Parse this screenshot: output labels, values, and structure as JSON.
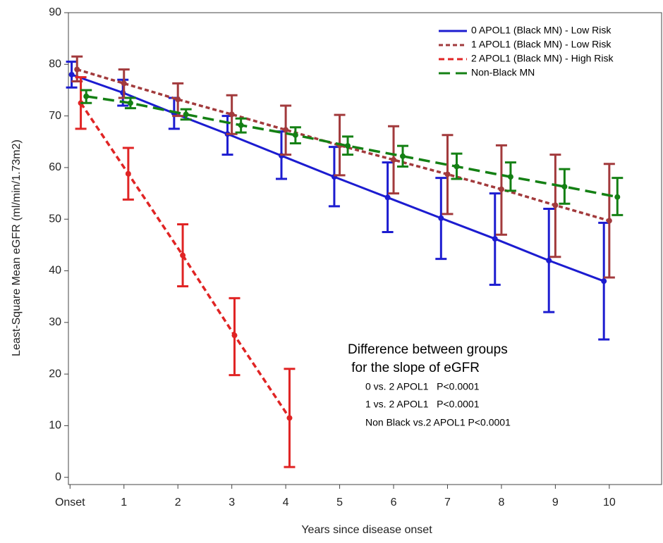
{
  "chart_data": {
    "type": "line",
    "xlabel": "Years since disease onset",
    "ylabel": "Least-Square Mean eGFR (ml/min/1.73m2)",
    "xlim": [
      -0.03,
      10.97
    ],
    "ylim": [
      -1.4,
      90
    ],
    "xticks": [
      {
        "value": 0,
        "label": "Onset"
      },
      1,
      2,
      3,
      4,
      5,
      6,
      7,
      8,
      9,
      10
    ],
    "yticks": [
      0,
      10,
      20,
      30,
      40,
      50,
      60,
      70,
      80,
      90
    ],
    "legend": "upper right",
    "series": [
      {
        "name": "0 APOL1 (Black MN) - Low Risk",
        "color": "#1c1cd0",
        "dash": "solid",
        "x": [
          0.03,
          0.98,
          1.93,
          2.92,
          3.92,
          4.9,
          5.89,
          6.88,
          7.88,
          8.88,
          9.9
        ],
        "values": [
          78,
          74.5,
          70.5,
          66.5,
          62.3,
          58.2,
          54.2,
          50.2,
          46.2,
          42,
          38
        ],
        "lower": [
          75.5,
          72,
          67.5,
          62.5,
          57.8,
          52.5,
          47.5,
          42.3,
          37.3,
          32,
          26.7
        ],
        "upper": [
          80.5,
          77,
          73.5,
          70,
          67,
          64,
          61,
          58,
          55,
          52,
          49.3
        ]
      },
      {
        "name": "1 APOL1 (Black MN) - Low Risk",
        "color": "#a23a3c",
        "dash": "short",
        "x": [
          0.13,
          1.0,
          2.0,
          3.0,
          4.0,
          5.0,
          6.0,
          7.0,
          8.0,
          9.0,
          10.0
        ],
        "values": [
          79,
          76.3,
          73.2,
          70.3,
          67.3,
          64.3,
          61.5,
          58.7,
          55.8,
          52.7,
          49.7
        ],
        "lower": [
          76.7,
          73.5,
          70,
          66.5,
          62.5,
          58.5,
          55,
          51,
          47,
          42.7,
          38.7
        ],
        "upper": [
          81.5,
          79,
          76.3,
          74,
          72,
          70.2,
          68,
          66.3,
          64.3,
          62.5,
          60.7
        ]
      },
      {
        "name": "2 APOL1 (Black MN) - High Risk",
        "color": "#e02424",
        "dash": "medium",
        "x": [
          0.2,
          1.08,
          2.09,
          3.05,
          4.07
        ],
        "values": [
          72.5,
          58.8,
          43,
          27.5,
          11.5
        ],
        "lower": [
          67.5,
          53.8,
          37,
          19.8,
          2
        ],
        "upper": [
          77.5,
          63.8,
          49,
          34.7,
          21
        ]
      },
      {
        "name": "Non-Black MN",
        "color": "#148014",
        "dash": "long",
        "x": [
          0.3,
          1.12,
          2.15,
          3.17,
          4.18,
          5.15,
          6.17,
          7.17,
          8.17,
          9.17,
          10.15
        ],
        "values": [
          73.8,
          72.5,
          70.3,
          68.2,
          66.3,
          64.2,
          62.2,
          60.2,
          58.2,
          56.3,
          54.3
        ],
        "lower": [
          72.5,
          71.5,
          69.3,
          66.8,
          64.7,
          62.5,
          60.2,
          57.8,
          55.5,
          53,
          50.8
        ],
        "upper": [
          75,
          73.5,
          71.3,
          69.5,
          67.8,
          66,
          64.2,
          62.7,
          61,
          59.7,
          58
        ]
      }
    ],
    "annotations": [
      "Difference between groups",
      " for the slope of eGFR",
      "0 vs. 2 APOL1   P<0.0001",
      "1 vs. 2 APOL1   P<0.0001",
      "Non Black vs.2 APOL1 P<0.0001"
    ]
  }
}
